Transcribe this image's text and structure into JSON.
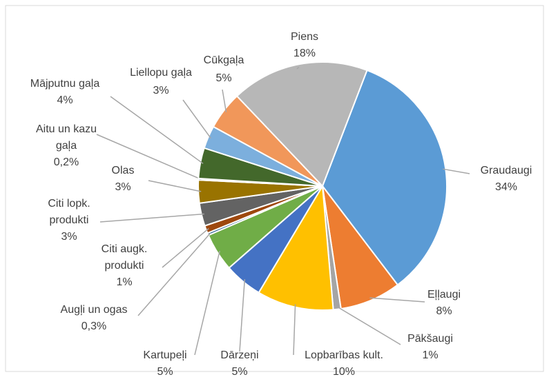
{
  "chart_data": {
    "type": "pie",
    "categories": [
      "Graudaugi",
      "Eļļaugi",
      "Pākšaugi",
      "Lopbarības kult.",
      "Dārzeņi",
      "Kartupeļi",
      "Augļi un ogas",
      "Citi augk. produkti",
      "Citi lopk. produkti",
      "Olas",
      "Aitu un kazu gaļa",
      "Mājputnu gaļa",
      "Liellopu gaļa",
      "Cūkgaļa",
      "Piens"
    ],
    "values": [
      34,
      8,
      1,
      10,
      5,
      5,
      0.3,
      1,
      3,
      3,
      0.2,
      4,
      3,
      5,
      18
    ],
    "value_labels": [
      "34%",
      "8%",
      "1%",
      "10%",
      "5%",
      "5%",
      "0,3%",
      "1%",
      "3%",
      "3%",
      "0,2%",
      "4%",
      "3%",
      "5%",
      "18%"
    ],
    "colors": [
      "#5b9bd5",
      "#ed7d31",
      "#a5a5a5",
      "#ffc000",
      "#4472c4",
      "#70ad47",
      "#255e91",
      "#9e480e",
      "#636363",
      "#997300",
      "#264478",
      "#43682b",
      "#7cafdd",
      "#f1975a",
      "#b7b7b7"
    ]
  }
}
